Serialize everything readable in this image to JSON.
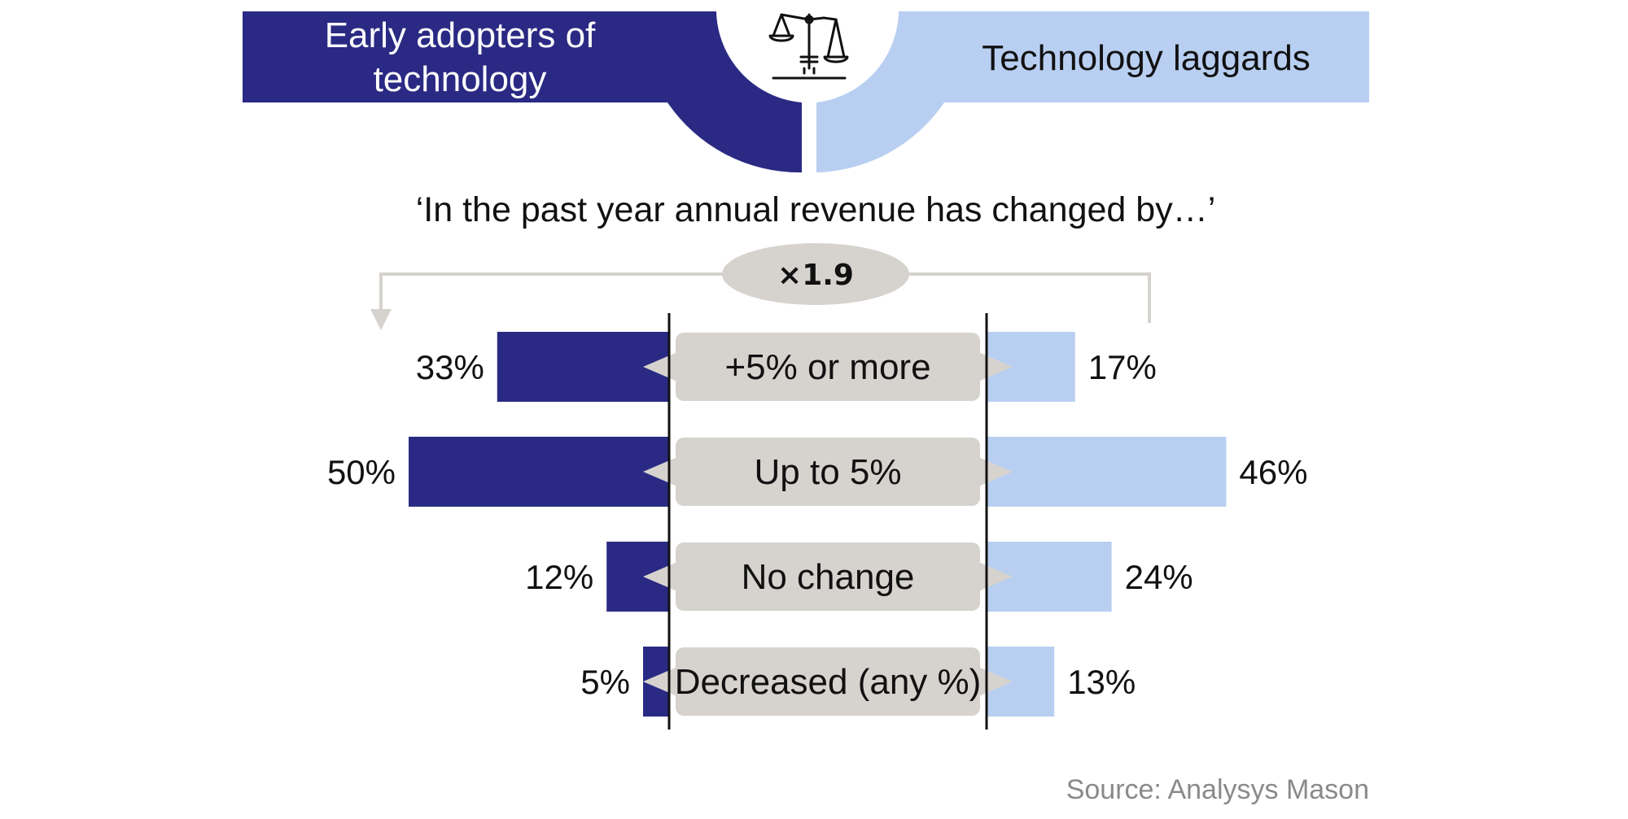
{
  "header": {
    "left_label_line1": "Early adopters of",
    "left_label_line2": "technology",
    "right_label": "Technology laggards",
    "icon": "balance-scale-icon"
  },
  "subtitle": "‘In the past year annual revenue has changed by…’",
  "multiplier": "×1.9",
  "source": "Source: Analysys Mason",
  "colors": {
    "early": "#2a2a84",
    "laggard": "#b8cff2",
    "label_box": "#d6d3cf",
    "arrow": "#d6d3cf"
  },
  "chart_data": {
    "type": "bar",
    "categories": [
      "+5% or more",
      "Up to 5%",
      "No change",
      "Decreased (any %)"
    ],
    "series": [
      {
        "name": "Early adopters of technology",
        "values": [
          33,
          50,
          12,
          5
        ]
      },
      {
        "name": "Technology laggards",
        "values": [
          17,
          46,
          24,
          13
        ]
      }
    ],
    "value_labels_left": [
      "33%",
      "50%",
      "12%",
      "5%"
    ],
    "value_labels_right": [
      "17%",
      "46%",
      "24%",
      "13%"
    ],
    "unit": "%"
  }
}
